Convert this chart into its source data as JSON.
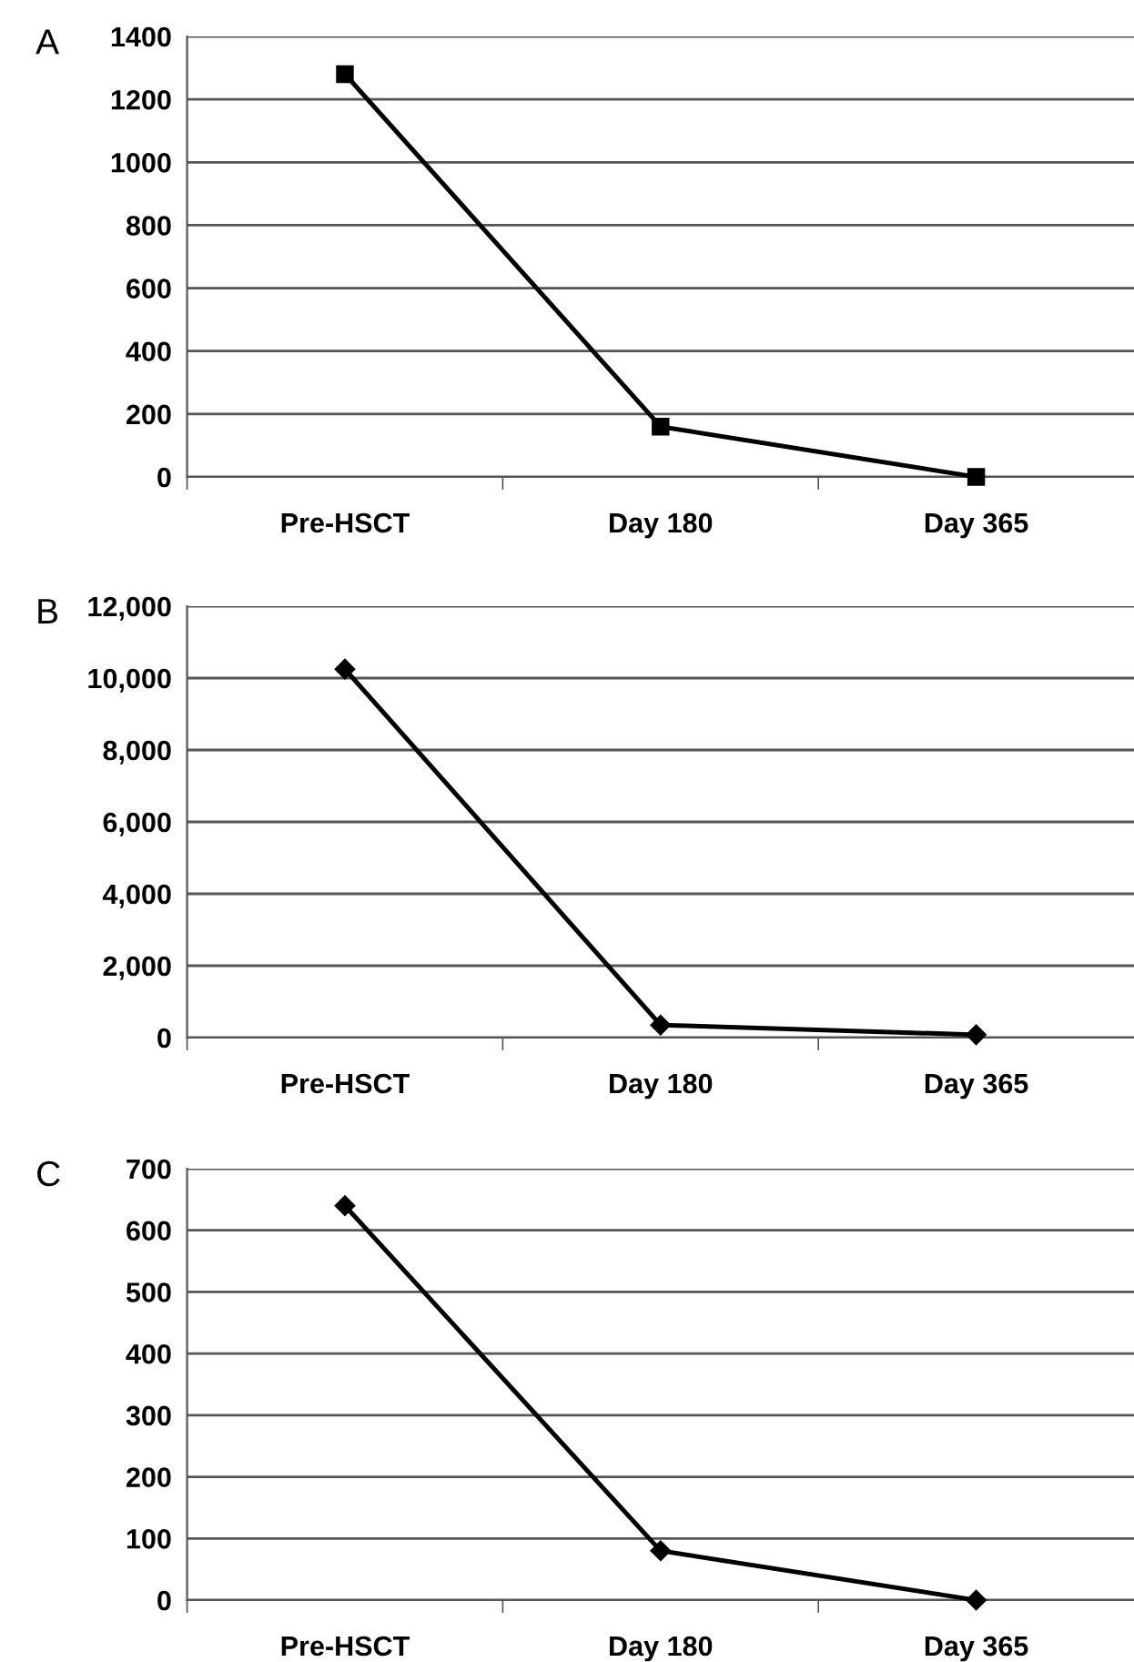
{
  "chart_data": [
    {
      "type": "line",
      "title": "A",
      "categories": [
        "Pre-HSCT",
        "Day 180",
        "Day 365"
      ],
      "series": [
        {
          "color": "#000000",
          "values": [
            1280,
            160,
            0
          ]
        }
      ],
      "marker": "square",
      "line_style": "solid",
      "ylim": [
        0,
        1400
      ],
      "yticks": [
        0,
        200,
        400,
        600,
        800,
        1000,
        1200,
        1400
      ],
      "grid": "y",
      "legend": false
    },
    {
      "type": "line",
      "title": "B",
      "categories": [
        "Pre-HSCT",
        "Day 180",
        "Day 365"
      ],
      "series": [
        {
          "color": "#000000",
          "values": [
            10250,
            350,
            80
          ]
        }
      ],
      "marker": "diamond",
      "line_style": "solid",
      "ylim": [
        0,
        12000
      ],
      "yticks": [
        0,
        {
          "value": 2000,
          "label": "2,000"
        },
        {
          "value": 4000,
          "label": "4,000"
        },
        {
          "value": 6000,
          "label": "6,000"
        },
        {
          "value": 8000,
          "label": "8,000"
        },
        {
          "value": 10000,
          "label": "10,000"
        },
        {
          "value": 12000,
          "label": "12,000"
        }
      ],
      "grid": "y",
      "legend": false
    },
    {
      "type": "line",
      "title": "C",
      "categories": [
        "Pre-HSCT",
        "Day 180",
        "Day 365"
      ],
      "series": [
        {
          "color": "#000000",
          "values": [
            640,
            80,
            0
          ]
        }
      ],
      "marker": "diamond",
      "line_style": "solid",
      "ylim": [
        0,
        700
      ],
      "yticks": [
        0,
        100,
        200,
        300,
        400,
        500,
        600,
        700
      ],
      "grid": "y",
      "legend": false
    }
  ]
}
